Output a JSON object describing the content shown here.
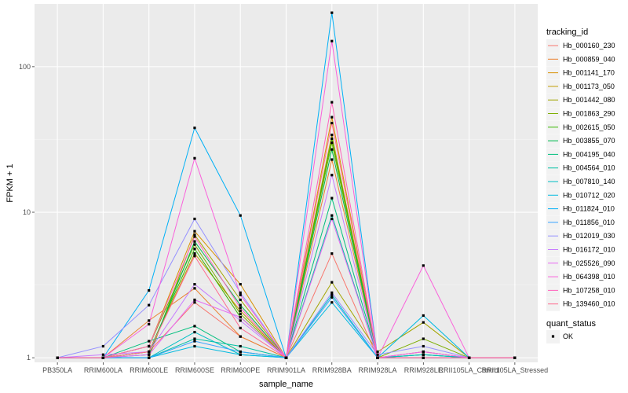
{
  "chart_data": {
    "type": "line",
    "xlabel": "sample_name",
    "ylabel": "FPKM + 1",
    "y_scale": "log10",
    "ylim": [
      0.93,
      270
    ],
    "yticks": [
      1,
      10,
      100
    ],
    "grid": true,
    "legend_position": "right",
    "x": [
      "PB350LA",
      "RRIM600LA",
      "RRIM600LE",
      "RRIM600SE",
      "RRIM600PE",
      "RRIM901LA",
      "RRIM928BA",
      "RRIM928LA",
      "RRIM928LE",
      "RRII105LA_Control",
      "RRII105LA_Stressed"
    ],
    "series": [
      {
        "name": "Hb_000160_230",
        "color": "#F8766D",
        "values": [
          1.0,
          1.0,
          1.1,
          2.4,
          1.4,
          1.0,
          5.2,
          1.0,
          1.1,
          1.0,
          1.0
        ]
      },
      {
        "name": "Hb_000859_040",
        "color": "#EA8331",
        "values": [
          1.0,
          1.0,
          1.8,
          3.0,
          1.4,
          1.0,
          23.0,
          1.0,
          1.1,
          1.0,
          1.0
        ]
      },
      {
        "name": "Hb_001141_170",
        "color": "#D89000",
        "values": [
          1.0,
          1.0,
          1.2,
          7.4,
          3.2,
          1.0,
          45.0,
          1.0,
          1.0,
          1.0,
          1.0
        ]
      },
      {
        "name": "Hb_001173_050",
        "color": "#C09B00",
        "values": [
          1.0,
          1.0,
          1.1,
          5.2,
          2.1,
          1.0,
          34.0,
          1.0,
          1.0,
          1.0,
          1.0
        ]
      },
      {
        "name": "Hb_001442_080",
        "color": "#A3A500",
        "values": [
          1.0,
          1.0,
          1.0,
          7.0,
          2.5,
          1.0,
          3.3,
          1.1,
          1.75,
          1.0,
          1.0
        ]
      },
      {
        "name": "Hb_001863_290",
        "color": "#7CAE00",
        "values": [
          1.0,
          1.0,
          1.2,
          6.0,
          2.0,
          1.0,
          30.0,
          1.0,
          1.35,
          1.0,
          1.0
        ]
      },
      {
        "name": "Hb_002615_050",
        "color": "#39B600",
        "values": [
          1.0,
          1.0,
          1.1,
          5.6,
          1.9,
          1.0,
          32.0,
          1.0,
          1.05,
          1.0,
          1.0
        ]
      },
      {
        "name": "Hb_003855_070",
        "color": "#00BB4E",
        "values": [
          1.0,
          1.0,
          1.05,
          6.3,
          2.3,
          1.0,
          27.0,
          1.0,
          1.0,
          1.0,
          1.0
        ]
      },
      {
        "name": "Hb_004195_040",
        "color": "#00BF7D",
        "values": [
          1.0,
          1.0,
          1.3,
          1.65,
          1.1,
          1.0,
          12.5,
          1.0,
          1.0,
          1.0,
          1.0
        ]
      },
      {
        "name": "Hb_004564_010",
        "color": "#00C1A3",
        "values": [
          1.0,
          1.0,
          1.0,
          1.35,
          1.2,
          1.0,
          9.5,
          1.0,
          1.05,
          1.0,
          1.0
        ]
      },
      {
        "name": "Hb_007810_140",
        "color": "#00BFC4",
        "values": [
          1.0,
          1.0,
          1.0,
          1.5,
          1.05,
          1.0,
          2.7,
          1.0,
          1.05,
          1.0,
          1.0
        ]
      },
      {
        "name": "Hb_010712_020",
        "color": "#00BAE0",
        "values": [
          1.0,
          1.0,
          1.0,
          1.2,
          1.05,
          1.0,
          2.4,
          1.0,
          1.95,
          1.0,
          1.0
        ]
      },
      {
        "name": "Hb_011824_010",
        "color": "#00B0F6",
        "values": [
          1.0,
          1.0,
          2.9,
          38.0,
          9.5,
          1.0,
          235.0,
          1.0,
          1.0,
          1.0,
          1.0
        ]
      },
      {
        "name": "Hb_011856_010",
        "color": "#35A2FF",
        "values": [
          1.0,
          1.0,
          1.0,
          1.3,
          1.1,
          1.0,
          2.6,
          1.0,
          1.0,
          1.0,
          1.0
        ]
      },
      {
        "name": "Hb_012019_030",
        "color": "#9590FF",
        "values": [
          1.0,
          1.2,
          2.3,
          9.0,
          2.8,
          1.0,
          2.8,
          1.05,
          1.2,
          1.0,
          1.0
        ]
      },
      {
        "name": "Hb_016172_010",
        "color": "#C77CFF",
        "values": [
          1.0,
          1.05,
          1.1,
          3.2,
          1.8,
          1.0,
          18.0,
          1.0,
          1.0,
          1.0,
          1.0
        ]
      },
      {
        "name": "Hb_025526_090",
        "color": "#E76BF3",
        "values": [
          1.0,
          1.0,
          1.05,
          2.5,
          1.9,
          1.0,
          9.0,
          1.0,
          1.1,
          1.0,
          1.0
        ]
      },
      {
        "name": "Hb_064398_010",
        "color": "#FA62DB",
        "values": [
          1.0,
          1.0,
          1.7,
          23.5,
          2.7,
          1.0,
          150.0,
          1.0,
          4.3,
          1.0,
          1.0
        ]
      },
      {
        "name": "Hb_107258_010",
        "color": "#FF62BC",
        "values": [
          1.0,
          1.0,
          1.2,
          6.8,
          2.2,
          1.0,
          57.0,
          1.0,
          1.0,
          1.0,
          1.0
        ]
      },
      {
        "name": "Hb_139460_010",
        "color": "#FF6C91",
        "values": [
          1.0,
          1.0,
          1.1,
          5.0,
          1.6,
          1.0,
          41.0,
          1.0,
          1.0,
          1.0,
          1.0
        ]
      }
    ],
    "legend_title": "tracking_id",
    "shape_legend": {
      "title": "quant_status",
      "items": [
        "OK"
      ]
    }
  }
}
